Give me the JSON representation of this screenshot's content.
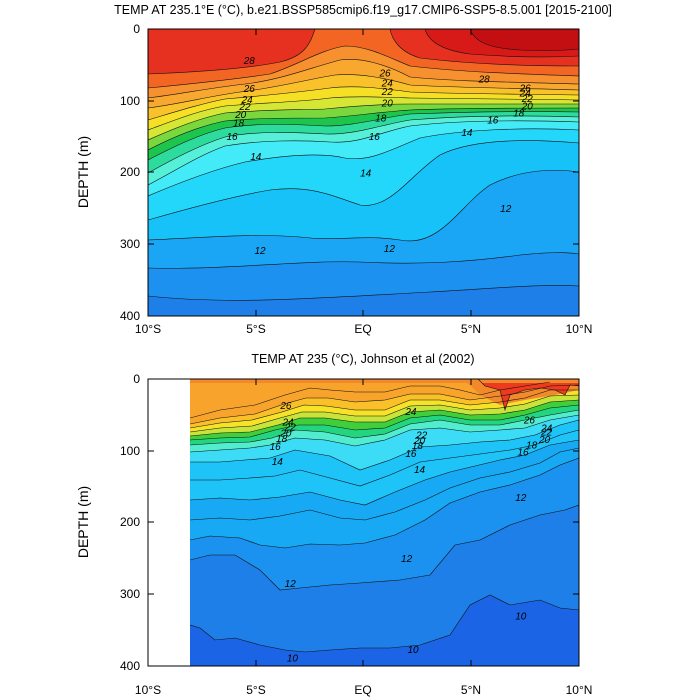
{
  "chart_data": [
    {
      "type": "heatmap",
      "subtype": "filled-contour",
      "title": "TEMP AT 235.1°E (°C), b.e21.BSSP585cmip6.f19_g17.CMIP6-SSP5-8.5.001 [2015-2100]",
      "ylabel": "DEPTH (m)",
      "xlabel": "",
      "x_ticks": [
        "10°S",
        "5°S",
        "EQ",
        "5°N",
        "10°N"
      ],
      "x_values": [
        -10,
        -5,
        0,
        5,
        10
      ],
      "y_ticks": [
        "0",
        "100",
        "200",
        "300",
        "400"
      ],
      "y_values": [
        0,
        100,
        200,
        300,
        400
      ],
      "xlim": [
        -10,
        10
      ],
      "ylim": [
        0,
        400
      ],
      "y_inverted": true,
      "contour_interval": 1,
      "contour_labels": [
        {
          "text": "28",
          "x": -5.3,
          "y": 44
        },
        {
          "text": "28",
          "x": 5.6,
          "y": 70
        },
        {
          "text": "26",
          "x": -5.3,
          "y": 83
        },
        {
          "text": "26",
          "x": 1.0,
          "y": 61
        },
        {
          "text": "26",
          "x": 7.5,
          "y": 82
        },
        {
          "text": "24",
          "x": -5.4,
          "y": 98
        },
        {
          "text": "24",
          "x": 1.1,
          "y": 75
        },
        {
          "text": "24",
          "x": 7.5,
          "y": 89
        },
        {
          "text": "22",
          "x": -5.5,
          "y": 108
        },
        {
          "text": "22",
          "x": 1.1,
          "y": 87
        },
        {
          "text": "22",
          "x": 7.6,
          "y": 97
        },
        {
          "text": "20",
          "x": -5.7,
          "y": 119
        },
        {
          "text": "20",
          "x": 1.1,
          "y": 103
        },
        {
          "text": "20",
          "x": 7.6,
          "y": 107
        },
        {
          "text": "18",
          "x": -5.8,
          "y": 131
        },
        {
          "text": "18",
          "x": 0.8,
          "y": 124
        },
        {
          "text": "18",
          "x": 7.2,
          "y": 117
        },
        {
          "text": "16",
          "x": -6.1,
          "y": 150
        },
        {
          "text": "16",
          "x": 0.5,
          "y": 150
        },
        {
          "text": "16",
          "x": 6.0,
          "y": 127
        },
        {
          "text": "14",
          "x": -5.0,
          "y": 178
        },
        {
          "text": "14",
          "x": 0.1,
          "y": 201
        },
        {
          "text": "14",
          "x": 4.8,
          "y": 144
        },
        {
          "text": "12",
          "x": -4.8,
          "y": 309
        },
        {
          "text": "12",
          "x": 1.2,
          "y": 306
        },
        {
          "text": "12",
          "x": 6.6,
          "y": 250
        }
      ]
    },
    {
      "type": "heatmap",
      "subtype": "filled-contour",
      "title": "TEMP AT 235 (°C), Johnson et al (2002)",
      "ylabel": "DEPTH (m)",
      "xlabel": "",
      "x_ticks": [
        "10°S",
        "5°S",
        "EQ",
        "5°N",
        "10°N"
      ],
      "x_values": [
        -10,
        -5,
        0,
        5,
        10
      ],
      "y_ticks": [
        "0",
        "100",
        "200",
        "300",
        "400"
      ],
      "y_values": [
        0,
        100,
        200,
        300,
        400
      ],
      "xlim": [
        -10,
        10
      ],
      "ylim": [
        0,
        400
      ],
      "y_inverted": true,
      "data_x_range": [
        -8,
        10
      ],
      "contour_interval": 1,
      "contour_labels": [
        {
          "text": "26",
          "x": -3.6,
          "y": 37
        },
        {
          "text": "24",
          "x": -3.5,
          "y": 60
        },
        {
          "text": "22",
          "x": -3.4,
          "y": 67
        },
        {
          "text": "20",
          "x": -3.6,
          "y": 75
        },
        {
          "text": "18",
          "x": -3.8,
          "y": 83
        },
        {
          "text": "16",
          "x": -4.1,
          "y": 94
        },
        {
          "text": "14",
          "x": -4.0,
          "y": 115
        },
        {
          "text": "24",
          "x": 2.2,
          "y": 45
        },
        {
          "text": "22",
          "x": 2.7,
          "y": 78
        },
        {
          "text": "20",
          "x": 2.6,
          "y": 86
        },
        {
          "text": "18",
          "x": 2.5,
          "y": 93
        },
        {
          "text": "16",
          "x": 2.2,
          "y": 104
        },
        {
          "text": "14",
          "x": 2.6,
          "y": 126
        },
        {
          "text": "26",
          "x": 7.7,
          "y": 57
        },
        {
          "text": "24",
          "x": 8.5,
          "y": 68
        },
        {
          "text": "22",
          "x": 8.5,
          "y": 74
        },
        {
          "text": "20",
          "x": 8.4,
          "y": 84
        },
        {
          "text": "18",
          "x": 7.8,
          "y": 92
        },
        {
          "text": "16",
          "x": 7.4,
          "y": 102
        },
        {
          "text": "12",
          "x": 7.3,
          "y": 165
        },
        {
          "text": "12",
          "x": -3.4,
          "y": 285
        },
        {
          "text": "12",
          "x": 2.0,
          "y": 250
        },
        {
          "text": "10",
          "x": 7.3,
          "y": 330
        },
        {
          "text": "10",
          "x": 2.3,
          "y": 377
        },
        {
          "text": "10",
          "x": -3.3,
          "y": 389
        }
      ]
    }
  ]
}
